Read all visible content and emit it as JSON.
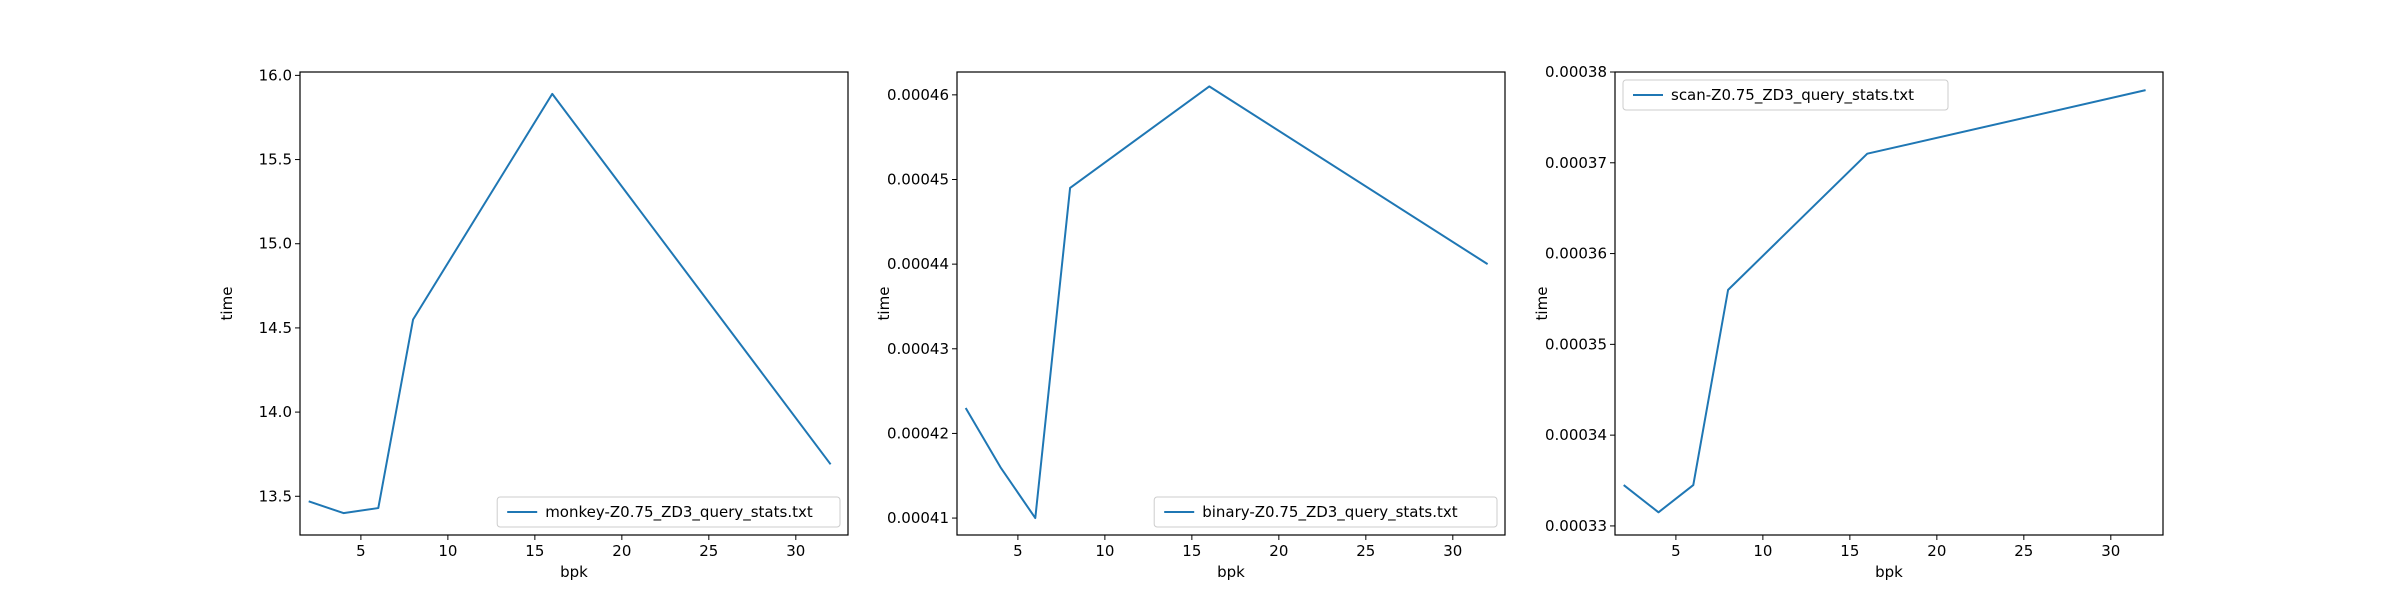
{
  "chart_data": [
    {
      "type": "line",
      "xlabel": "bpk",
      "ylabel": "time",
      "xlim": [
        1.5,
        33.0
      ],
      "ylim": [
        13.27,
        16.02
      ],
      "xticks": [
        5,
        10,
        15,
        20,
        25,
        30
      ],
      "xtick_labels": [
        "5",
        "10",
        "15",
        "20",
        "25",
        "30"
      ],
      "yticks": [
        13.5,
        14.0,
        14.5,
        15.0,
        15.5,
        16.0
      ],
      "ytick_labels": [
        "13.5",
        "14.0",
        "14.5",
        "15.0",
        "15.5",
        "16.0"
      ],
      "legend_position": "lower-right",
      "series": [
        {
          "name": "monkey-Z0.75_ZD3_query_stats.txt",
          "color": "#1f77b4",
          "x": [
            2,
            4,
            6,
            8,
            16,
            32
          ],
          "y": [
            13.47,
            13.4,
            13.43,
            14.55,
            15.89,
            13.69
          ]
        }
      ]
    },
    {
      "type": "line",
      "xlabel": "bpk",
      "ylabel": "time",
      "xlim": [
        1.5,
        33.0
      ],
      "ylim": [
        0.000408,
        0.0004627
      ],
      "xticks": [
        5,
        10,
        15,
        20,
        25,
        30
      ],
      "xtick_labels": [
        "5",
        "10",
        "15",
        "20",
        "25",
        "30"
      ],
      "yticks": [
        0.00041,
        0.00042,
        0.00043,
        0.00044,
        0.00045,
        0.00046
      ],
      "ytick_labels": [
        "0.00041",
        "0.00042",
        "0.00043",
        "0.00044",
        "0.00045",
        "0.00046"
      ],
      "legend_position": "lower-right",
      "series": [
        {
          "name": "binary-Z0.75_ZD3_query_stats.txt",
          "color": "#1f77b4",
          "x": [
            2,
            4,
            6,
            8,
            16,
            32
          ],
          "y": [
            0.000423,
            0.000416,
            0.00041,
            0.000449,
            0.000461,
            0.00044
          ]
        }
      ]
    },
    {
      "type": "line",
      "xlabel": "bpk",
      "ylabel": "time",
      "xlim": [
        1.5,
        33.0
      ],
      "ylim": [
        0.000329,
        0.00038
      ],
      "xticks": [
        5,
        10,
        15,
        20,
        25,
        30
      ],
      "xtick_labels": [
        "5",
        "10",
        "15",
        "20",
        "25",
        "30"
      ],
      "yticks": [
        0.00033,
        0.00034,
        0.00035,
        0.00036,
        0.00037,
        0.00038
      ],
      "ytick_labels": [
        "0.00033",
        "0.00034",
        "0.00035",
        "0.00036",
        "0.00037",
        "0.00038"
      ],
      "legend_position": "upper-left",
      "series": [
        {
          "name": "scan-Z0.75_ZD3_query_stats.txt",
          "color": "#1f77b4",
          "x": [
            2,
            4,
            6,
            8,
            16,
            32
          ],
          "y": [
            0.0003345,
            0.0003315,
            0.0003345,
            0.000356,
            0.000371,
            0.000378
          ]
        }
      ]
    }
  ]
}
